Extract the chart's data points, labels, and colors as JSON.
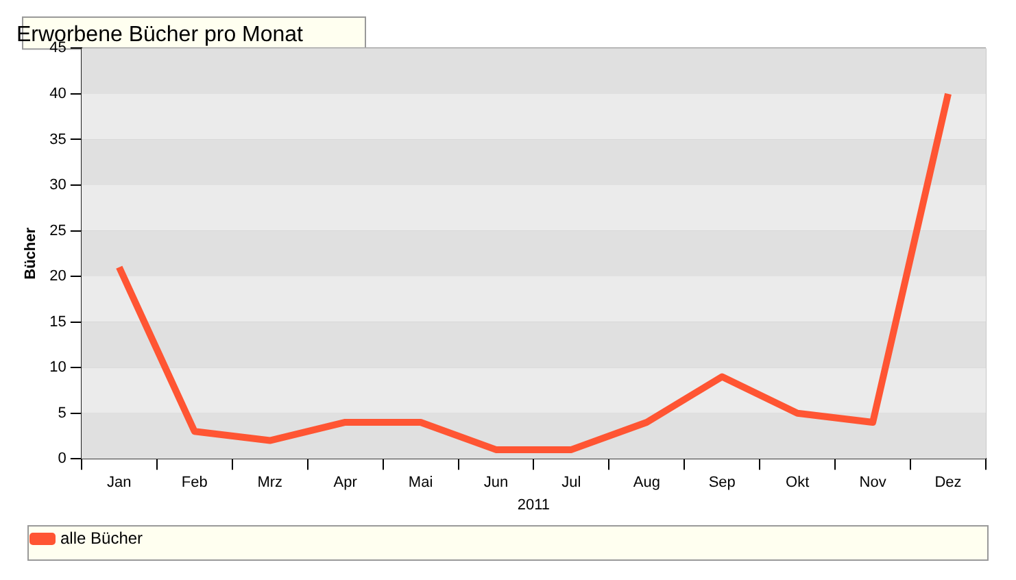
{
  "chart_data": {
    "type": "line",
    "title": "Erworbene Bücher pro Monat",
    "xlabel": "2011",
    "ylabel": "Bücher",
    "categories": [
      "Jan",
      "Feb",
      "Mrz",
      "Apr",
      "Mai",
      "Jun",
      "Jul",
      "Aug",
      "Sep",
      "Okt",
      "Nov",
      "Dez"
    ],
    "series": [
      {
        "name": "alle Bücher",
        "color": "#ff5533",
        "values": [
          21,
          3,
          2,
          4,
          4,
          1,
          1,
          4,
          9,
          5,
          4,
          40
        ]
      }
    ],
    "ylim": [
      0,
      45
    ],
    "yticks": [
      0,
      5,
      10,
      15,
      20,
      25,
      30,
      35,
      40,
      45
    ],
    "grid": true,
    "legend": "bottom",
    "marker": "none",
    "line_style": "solid"
  }
}
